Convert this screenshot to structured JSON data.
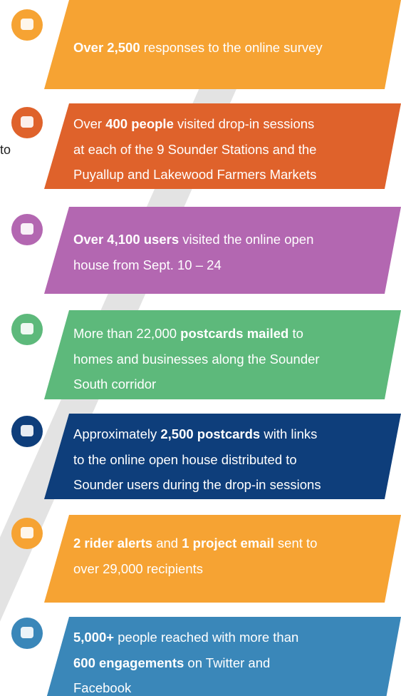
{
  "fragment": "to",
  "items": [
    {
      "color": "#f6a333",
      "lines": [
        [
          {
            "text": "Over 2,500",
            "bold": true
          },
          {
            "text": " responses to the online survey"
          }
        ]
      ]
    },
    {
      "color": "#df622b",
      "lines": [
        [
          {
            "text": "Over "
          },
          {
            "text": "400 people",
            "bold": true
          },
          {
            "text": " visited drop-in sessions"
          }
        ],
        [
          {
            "text": "at each of the 9 Sounder Stations and the"
          }
        ],
        [
          {
            "text": "Puyallup and Lakewood Farmers Markets"
          }
        ]
      ]
    },
    {
      "color": "#b367b1",
      "lines": [
        [
          {
            "text": "Over 4,100 users",
            "bold": true
          },
          {
            "text": " visited the online open"
          }
        ],
        [
          {
            "text": "house from Sept. 10 – 24"
          }
        ]
      ]
    },
    {
      "color": "#5db97b",
      "lines": [
        [
          {
            "text": "More than 22,000 "
          },
          {
            "text": "postcards mailed",
            "bold": true
          },
          {
            "text": " to"
          }
        ],
        [
          {
            "text": "homes and businesses along the Sounder"
          }
        ],
        [
          {
            "text": "South corridor"
          }
        ]
      ]
    },
    {
      "color": "#0e3e7b",
      "lines": [
        [
          {
            "text": "Approximately "
          },
          {
            "text": "2,500 postcards",
            "bold": true
          },
          {
            "text": " with links"
          }
        ],
        [
          {
            "text": "to the online open house distributed to"
          }
        ],
        [
          {
            "text": "Sounder users during the drop-in sessions"
          }
        ]
      ]
    },
    {
      "color": "#f6a333",
      "lines": [
        [
          {
            "text": "2 rider alerts",
            "bold": true
          },
          {
            "text": " and "
          },
          {
            "text": "1 project email",
            "bold": true
          },
          {
            "text": " sent to"
          }
        ],
        [
          {
            "text": "over 29,000 recipients"
          }
        ]
      ]
    },
    {
      "color": "#3a87b9",
      "lines": [
        [
          {
            "text": "5,000+",
            "bold": true
          },
          {
            "text": " people reached with more than"
          }
        ],
        [
          {
            "text": "600 engagements",
            "bold": true
          },
          {
            "text": " on Twitter and"
          }
        ],
        [
          {
            "text": "Facebook"
          }
        ]
      ]
    }
  ]
}
